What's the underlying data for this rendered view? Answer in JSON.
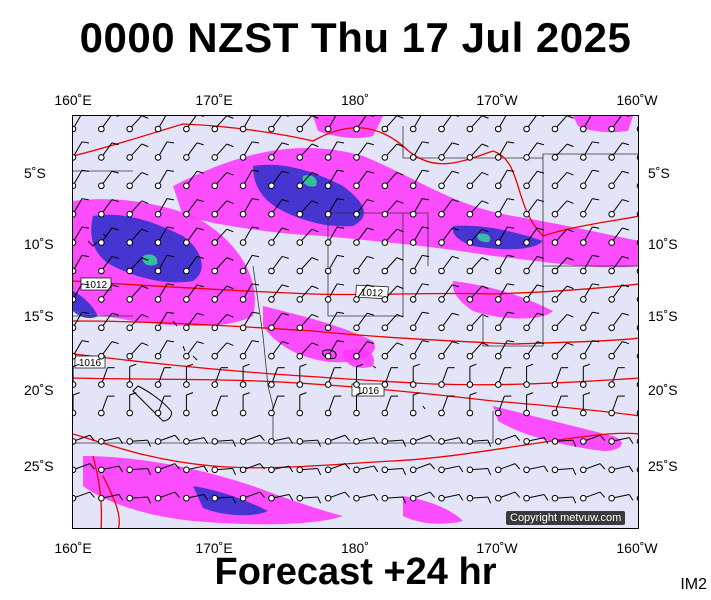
{
  "title": "0000 NZST Thu 17 Jul 2025",
  "subtitle": "Forecast +24 hr",
  "image_tag": "IM2",
  "copyright": "Copyright metvuw.com",
  "lon_labels": [
    "160˚E",
    "170˚E",
    "180˚",
    "170˚W",
    "160˚W"
  ],
  "lat_labels": [
    "5˚S",
    "10˚S",
    "15˚S",
    "20˚S",
    "25˚S"
  ],
  "isobar_labels": [
    "1012",
    "1012",
    "1016",
    "1016"
  ],
  "colors": {
    "map_background": "#e4e4f8",
    "rain_light": "#ff33ff",
    "rain_heavy": "#3333cc",
    "rain_very_heavy": "#33cc99",
    "isobar": "#ee0000",
    "coastline": "#000000"
  }
}
